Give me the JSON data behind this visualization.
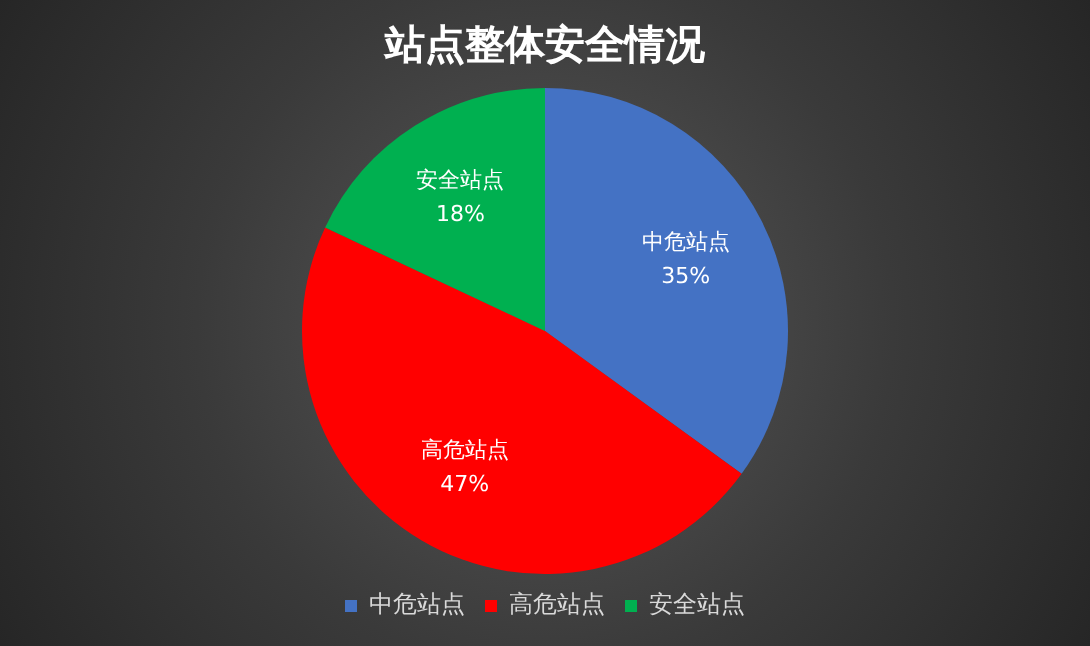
{
  "chart_data": {
    "type": "pie",
    "title": "站点整体安全情况",
    "categories": [
      "中危站点",
      "高危站点",
      "安全站点"
    ],
    "values": [
      35,
      47,
      18
    ],
    "value_labels": [
      "35%",
      "47%",
      "18%"
    ],
    "colors": [
      "#4472c4",
      "#ff0000",
      "#00b050"
    ],
    "legend": "bottom"
  }
}
